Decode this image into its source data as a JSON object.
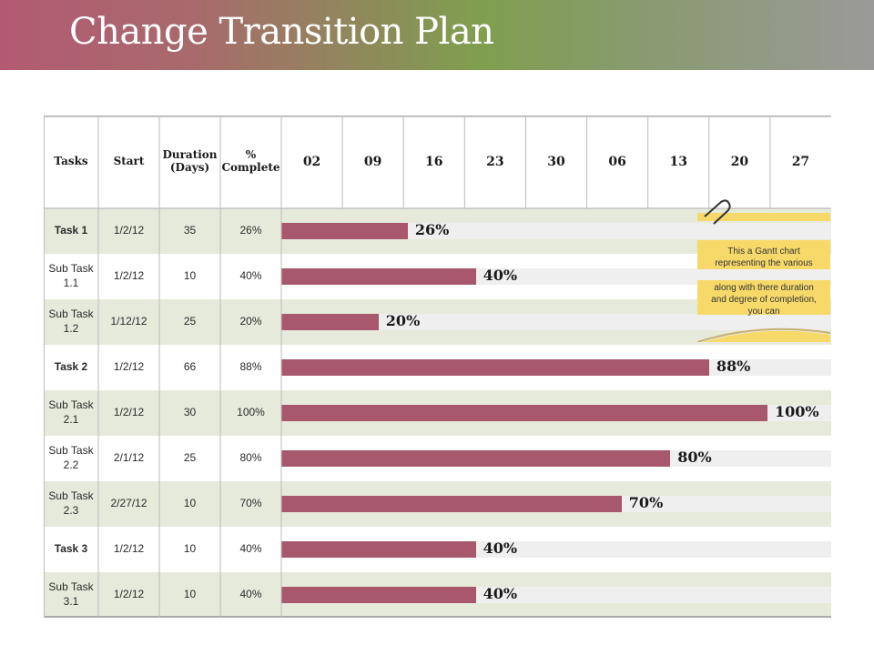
{
  "title": "Change Transition Plan",
  "colors": {
    "bar": "#a8586c",
    "track": "#efefef",
    "row_green": "#e6eadb",
    "callout": "#f7d96a",
    "grid": "#bbbbbb"
  },
  "headers": {
    "tasks": "Tasks",
    "start": "Start",
    "duration": "Duration (Days)",
    "complete": "% Complete"
  },
  "callout": {
    "line1": "This a Gantt chart representing the various",
    "line2": "along with there duration and degree of completion, you can",
    "icon": "paperclip-icon"
  },
  "chart_data": {
    "type": "bar",
    "orientation": "horizontal",
    "title": "Change Transition Plan",
    "date_ticks": [
      "02",
      "09",
      "16",
      "23",
      "30",
      "06",
      "13",
      "20",
      "27"
    ],
    "xlim": [
      0,
      100
    ],
    "rows": [
      {
        "task": "Task 1",
        "start": "1/2/12",
        "duration": "35",
        "complete": "26%",
        "value": 26,
        "label": "26%",
        "bold": true
      },
      {
        "task": "Sub Task 1.1",
        "start": "1/2/12",
        "duration": "10",
        "complete": "40%",
        "value": 40,
        "label": "40%",
        "bold": false
      },
      {
        "task": "Sub Task 1.2",
        "start": "1/12/12",
        "duration": "25",
        "complete": "20%",
        "value": 20,
        "label": "20%",
        "bold": false
      },
      {
        "task": "Task 2",
        "start": "1/2/12",
        "duration": "66",
        "complete": "88%",
        "value": 88,
        "label": "88%",
        "bold": true
      },
      {
        "task": "Sub Task 2.1",
        "start": "1/2/12",
        "duration": "30",
        "complete": "100%",
        "value": 100,
        "label": "100%",
        "bold": false
      },
      {
        "task": "Sub Task 2.2",
        "start": "2/1/12",
        "duration": "25",
        "complete": "80%",
        "value": 80,
        "label": "80%",
        "bold": false
      },
      {
        "task": "Sub Task 2.3",
        "start": "2/27/12",
        "duration": "10",
        "complete": "70%",
        "value": 70,
        "label": "70%",
        "bold": false
      },
      {
        "task": "Task 3",
        "start": "1/2/12",
        "duration": "10",
        "complete": "40%",
        "value": 40,
        "label": "40%",
        "bold": true
      },
      {
        "task": "Sub Task 3.1",
        "start": "1/2/12",
        "duration": "10",
        "complete": "40%",
        "value": 40,
        "label": "40%",
        "bold": false
      }
    ]
  }
}
